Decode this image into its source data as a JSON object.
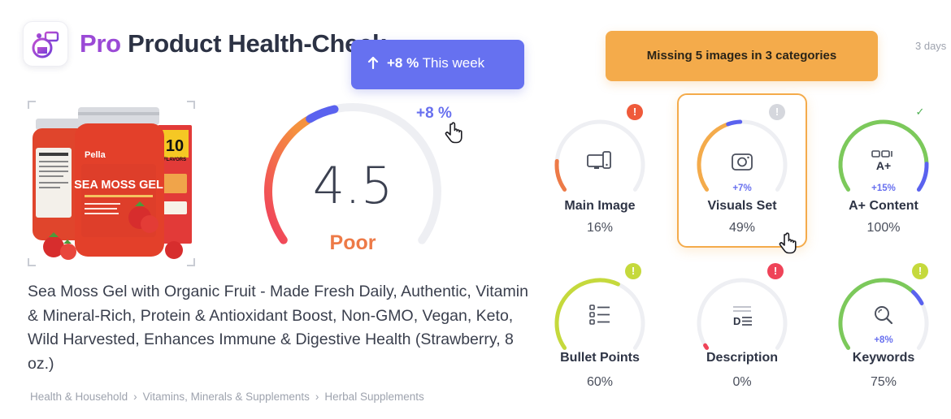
{
  "header": {
    "brand": "Pro",
    "title": "Product Health-Check",
    "period": "3 days"
  },
  "tooltips": {
    "trend": {
      "delta": "+8 %",
      "period": "This week"
    },
    "missing": "Missing 5 images in 3 categories"
  },
  "product": {
    "image_text": {
      "brand": "Pella",
      "name": "SEA MOSS GEL",
      "badge_number": "10",
      "badge_label": "FLAVORS"
    },
    "title": "Sea Moss Gel with Organic Fruit - Made Fresh Daily, Authentic, Vitamin & Mineral-Rich, Protein & Antioxidant Boost, Non-GMO, Vegan, Keto, Wild Harvested, Enhances Immune & Digestive Health (Strawberry, 8 oz.)",
    "breadcrumbs": [
      "Health & Household",
      "Vitamins, Minerals & Supplements",
      "Herbal Supplements"
    ]
  },
  "score": {
    "value": "4.5",
    "max": 10,
    "rating": "Poor",
    "delta": "+8 %",
    "delta_fraction": 0.08
  },
  "metrics": [
    {
      "label": "Main Image",
      "value": "16%",
      "pct": 16,
      "delta": "",
      "status": "error",
      "icon": "devices-icon",
      "color": "#ed7a47"
    },
    {
      "label": "Visuals Set",
      "value": "49%",
      "pct": 49,
      "delta": "+7%",
      "status": "info",
      "icon": "camera-icon",
      "color": "#f4ab4b"
    },
    {
      "label": "A+ Content",
      "value": "100%",
      "pct": 100,
      "delta": "+15%",
      "status": "ok",
      "icon": "a-plus-icon",
      "color": "#7cc95b"
    },
    {
      "label": "Bullet Points",
      "value": "60%",
      "pct": 60,
      "delta": "",
      "status": "warning",
      "icon": "list-icon",
      "color": "#c5d93c"
    },
    {
      "label": "Description",
      "value": "0%",
      "pct": 0,
      "delta": "",
      "status": "critical",
      "icon": "text-block-icon",
      "color": "#ef4358"
    },
    {
      "label": "Keywords",
      "value": "75%",
      "pct": 75,
      "delta": "+8%",
      "status": "warning",
      "icon": "search-icon",
      "color": "#7cc95b"
    }
  ],
  "colors": {
    "accent": "#6671f0",
    "brand": "#9b4ad6",
    "warning": "#f4ab4b",
    "poor": "#ed7a47"
  }
}
